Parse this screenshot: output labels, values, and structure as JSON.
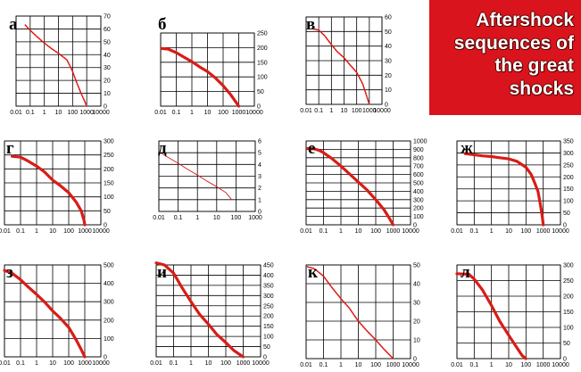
{
  "title": {
    "lines": [
      "Aftershock",
      "sequences of",
      "the great",
      "shocks"
    ],
    "background": "#d9141c",
    "text_color": "#ffffff"
  },
  "colors": {
    "curve": "#d91c16",
    "grid": "#000000"
  },
  "chart_data": [
    {
      "label": "а",
      "type": "line",
      "xscale": "log",
      "xticks": [
        "0.01",
        "0.1",
        "1",
        "10",
        "100",
        "1000",
        "10000"
      ],
      "xlim": [
        0.01,
        10000
      ],
      "yticks": [
        "0",
        "10",
        "20",
        "30",
        "40",
        "50",
        "60",
        "70"
      ],
      "ylim": [
        0,
        70
      ],
      "grid": true,
      "style": "dots",
      "series": [
        {
          "x": [
            0.045,
            0.1,
            0.3,
            1,
            3,
            10,
            40,
            100,
            200,
            400,
            700,
            1000
          ],
          "y": [
            63,
            59,
            54,
            49,
            45,
            41,
            36,
            27,
            18,
            10,
            4,
            0
          ]
        }
      ]
    },
    {
      "label": "б",
      "type": "line",
      "xscale": "log",
      "xticks": [
        "0.01",
        "0.1",
        "1",
        "10",
        "100",
        "1000",
        "10000"
      ],
      "xlim": [
        0.01,
        10000
      ],
      "yticks": [
        "0",
        "50",
        "100",
        "150",
        "200",
        "250"
      ],
      "ylim": [
        0,
        250
      ],
      "grid": true,
      "style": "thick",
      "series": [
        {
          "x": [
            0.012,
            0.03,
            0.1,
            0.3,
            1,
            3,
            10,
            30,
            100,
            300,
            700,
            1000
          ],
          "y": [
            197,
            195,
            183,
            168,
            152,
            135,
            118,
            98,
            70,
            40,
            12,
            0
          ]
        }
      ]
    },
    {
      "label": "в",
      "type": "line",
      "xscale": "log",
      "xticks": [
        "0.01",
        "0.1",
        "1",
        "10",
        "100",
        "1000",
        "10000"
      ],
      "xlim": [
        0.01,
        10000
      ],
      "yticks": [
        "0",
        "10",
        "20",
        "30",
        "40",
        "50",
        "60"
      ],
      "ylim": [
        0,
        60
      ],
      "grid": true,
      "style": "dots",
      "series": [
        {
          "x": [
            0.03,
            0.1,
            0.3,
            1,
            3,
            10,
            30,
            100,
            300,
            600,
            1000
          ],
          "y": [
            52,
            51,
            47,
            41,
            36,
            32,
            27,
            22,
            14,
            6,
            0
          ]
        }
      ]
    },
    {
      "label": "г",
      "type": "line",
      "xscale": "log",
      "xticks": [
        "0.01",
        "0.1",
        "1",
        "10",
        "100",
        "1000",
        "10000"
      ],
      "xlim": [
        0.01,
        10000
      ],
      "yticks": [
        "0",
        "50",
        "100",
        "150",
        "200",
        "250",
        "300"
      ],
      "ylim": [
        0,
        300
      ],
      "grid": true,
      "style": "thick",
      "series": [
        {
          "x": [
            0.03,
            0.1,
            0.3,
            1,
            3,
            10,
            30,
            100,
            300,
            600,
            900,
            1000
          ],
          "y": [
            245,
            242,
            228,
            210,
            190,
            160,
            140,
            115,
            80,
            50,
            15,
            0
          ]
        }
      ]
    },
    {
      "label": "д",
      "type": "line",
      "xscale": "log",
      "xticks": [
        "0.01",
        "0.1",
        "1",
        "10",
        "100",
        "1000"
      ],
      "xlim": [
        0.01,
        1000
      ],
      "yticks": [
        "0",
        "1",
        "2",
        "3",
        "4",
        "5",
        "6"
      ],
      "ylim": [
        0,
        6
      ],
      "grid": true,
      "style": "thin",
      "series": [
        {
          "x": [
            0.012,
            0.03,
            0.1,
            0.3,
            1,
            3,
            10,
            30,
            60
          ],
          "y": [
            5,
            4.6,
            4.1,
            3.6,
            3.1,
            2.6,
            2.1,
            1.6,
            1
          ]
        }
      ]
    },
    {
      "label": "е",
      "type": "line",
      "xscale": "log",
      "xticks": [
        "0.01",
        "0.1",
        "1",
        "10",
        "100",
        "1000",
        "10000"
      ],
      "xlim": [
        0.01,
        10000
      ],
      "yticks": [
        "0",
        "100",
        "200",
        "300",
        "400",
        "500",
        "600",
        "700",
        "800",
        "900",
        "1000"
      ],
      "ylim": [
        0,
        1000
      ],
      "grid": true,
      "style": "thick",
      "series": [
        {
          "x": [
            0.012,
            0.03,
            0.06,
            0.1,
            0.3,
            1,
            3,
            10,
            30,
            100,
            300,
            600,
            1000
          ],
          "y": [
            910,
            905,
            885,
            860,
            790,
            700,
            610,
            510,
            420,
            300,
            180,
            80,
            0
          ]
        }
      ]
    },
    {
      "label": "ж",
      "type": "line",
      "xscale": "log",
      "xticks": [
        "0.01",
        "0.1",
        "1",
        "10",
        "100",
        "1000",
        "10000"
      ],
      "xlim": [
        0.01,
        10000
      ],
      "yticks": [
        "0",
        "50",
        "100",
        "150",
        "200",
        "250",
        "300",
        "350"
      ],
      "ylim": [
        0,
        350
      ],
      "grid": true,
      "style": "thick",
      "series": [
        {
          "x": [
            0.03,
            0.1,
            0.3,
            1,
            3,
            10,
            30,
            100,
            200,
            300,
            500,
            700,
            900,
            1000
          ],
          "y": [
            297,
            292,
            288,
            285,
            280,
            275,
            265,
            240,
            210,
            180,
            140,
            80,
            30,
            0
          ]
        }
      ]
    },
    {
      "label": "з",
      "type": "line",
      "xscale": "log",
      "xticks": [
        "0.01",
        "0.1",
        "1",
        "10",
        "100",
        "1000",
        "10000"
      ],
      "xlim": [
        0.01,
        10000
      ],
      "yticks": [
        "0",
        "100",
        "200",
        "300",
        "400",
        "500"
      ],
      "ylim": [
        0,
        500
      ],
      "grid": true,
      "style": "thick",
      "series": [
        {
          "x": [
            0.01,
            0.03,
            0.1,
            0.3,
            1,
            3,
            10,
            30,
            100,
            300,
            600,
            1000
          ],
          "y": [
            470,
            455,
            420,
            380,
            340,
            300,
            250,
            210,
            160,
            90,
            40,
            0
          ]
        }
      ]
    },
    {
      "label": "и",
      "type": "line",
      "xscale": "log",
      "xticks": [
        "0.01",
        "0.1",
        "1",
        "10",
        "100",
        "1000",
        "10000"
      ],
      "xlim": [
        0.01,
        10000
      ],
      "yticks": [
        "0",
        "50",
        "100",
        "150",
        "200",
        "250",
        "300",
        "350",
        "400",
        "450"
      ],
      "ylim": [
        0,
        450
      ],
      "grid": true,
      "style": "thick",
      "series": [
        {
          "x": [
            0.01,
            0.03,
            0.1,
            0.3,
            1,
            3,
            10,
            30,
            100,
            300,
            1000
          ],
          "y": [
            460,
            450,
            410,
            340,
            270,
            210,
            160,
            110,
            70,
            30,
            0
          ]
        }
      ]
    },
    {
      "label": "к",
      "type": "line",
      "xscale": "log",
      "xticks": [
        "0.01",
        "0.1",
        "1",
        "10",
        "100",
        "1000",
        "10000"
      ],
      "xlim": [
        0.01,
        10000
      ],
      "yticks": [
        "0",
        "10",
        "20",
        "30",
        "40",
        "50"
      ],
      "ylim": [
        0,
        50
      ],
      "grid": true,
      "style": "dots",
      "series": [
        {
          "x": [
            0.012,
            0.03,
            0.1,
            0.3,
            1,
            3,
            10,
            30,
            100,
            300,
            800,
            1000
          ],
          "y": [
            49,
            48,
            44,
            38,
            32,
            27,
            20,
            15,
            10,
            5,
            1,
            0
          ]
        }
      ]
    },
    {
      "label": "л",
      "type": "line",
      "xscale": "log",
      "xticks": [
        "0.01",
        "0.1",
        "1",
        "10",
        "100",
        "1000",
        "10000"
      ],
      "xlim": [
        0.01,
        10000
      ],
      "yticks": [
        "0",
        "50",
        "100",
        "150",
        "200",
        "250",
        "300"
      ],
      "ylim": [
        0,
        300
      ],
      "grid": true,
      "style": "thick",
      "series": [
        {
          "x": [
            0.01,
            0.05,
            0.1,
            0.3,
            1,
            3,
            10,
            30,
            60,
            100
          ],
          "y": [
            272,
            270,
            255,
            220,
            170,
            120,
            75,
            35,
            10,
            0
          ]
        }
      ]
    }
  ]
}
